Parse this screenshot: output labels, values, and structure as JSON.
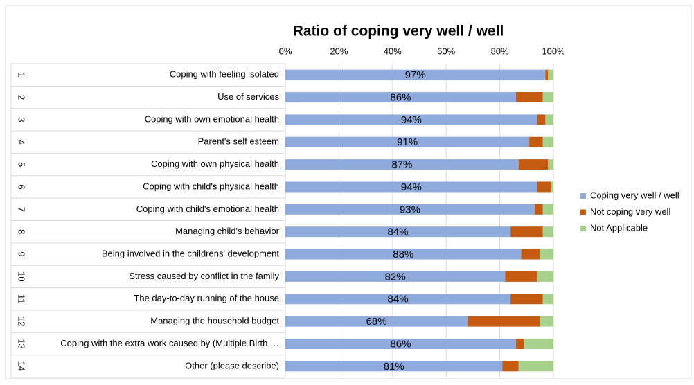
{
  "chart_data": {
    "type": "stacked_bar_horizontal",
    "title": "Ratio of coping very well  / well",
    "row_numbers": [
      1,
      2,
      3,
      4,
      5,
      6,
      7,
      8,
      9,
      10,
      11,
      12,
      13,
      14
    ],
    "categories": [
      "Coping with feeling isolated",
      "Use of services",
      "Coping with own emotional health",
      "Parent's self esteem",
      "Coping with own physical health",
      "Coping with child's physical health",
      "Coping with child's emotional health",
      "Managing child's behavior",
      "Being involved in the childrens' development",
      "Stress caused by conflict in the family",
      "The day-to-day running of the house",
      "Managing the household budget",
      "Coping with the extra work caused by  (Multiple Birth,…",
      "Other (please describe)"
    ],
    "series": [
      {
        "name": "Coping very well / well",
        "color": "#8faadc",
        "values": [
          97,
          86,
          94,
          91,
          87,
          94,
          93,
          84,
          88,
          82,
          84,
          68,
          86,
          81
        ],
        "value_labels": [
          "97%",
          "86%",
          "94%",
          "91%",
          "87%",
          "94%",
          "93%",
          "84%",
          "88%",
          "82%",
          "84%",
          "68%",
          "86%",
          "81%"
        ]
      },
      {
        "name": "Not coping very well",
        "color": "#c55a11",
        "values": [
          1,
          10,
          3,
          5,
          11,
          5,
          3,
          12,
          7,
          12,
          12,
          27,
          3,
          6
        ]
      },
      {
        "name": "Not Applicable",
        "color": "#a9d18e",
        "values": [
          2,
          4,
          3,
          4,
          2,
          1,
          4,
          4,
          5,
          6,
          4,
          5,
          11,
          13
        ]
      }
    ],
    "xlim": [
      0,
      100
    ],
    "xticks": [
      {
        "value": 0,
        "label": "0%"
      },
      {
        "value": 20,
        "label": "20%"
      },
      {
        "value": 40,
        "label": "40%"
      },
      {
        "value": 60,
        "label": "60%"
      },
      {
        "value": 80,
        "label": "80%"
      },
      {
        "value": 100,
        "label": "100%"
      }
    ],
    "grid": true,
    "legend": "right"
  }
}
